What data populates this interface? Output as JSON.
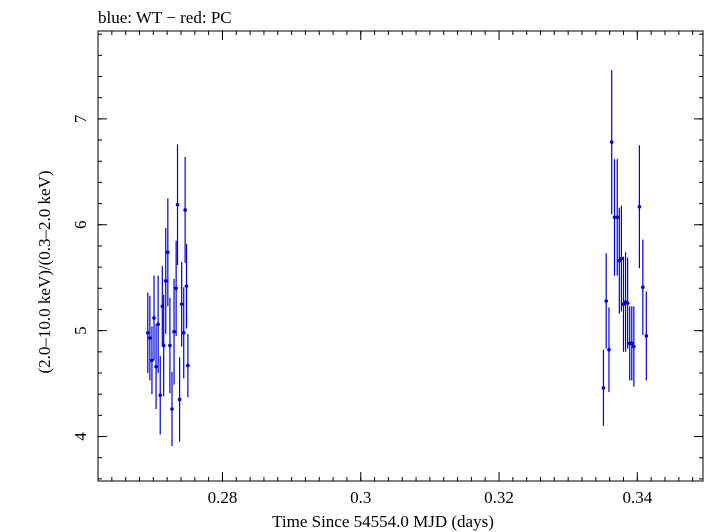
{
  "chart_data": {
    "type": "scatter",
    "title": "blue: WT − red: PC",
    "xlabel": "Time Since 54554.0 MJD (days)",
    "ylabel": "(2.0–10.0 keV)/(0.3–2.0 keV)",
    "xlim": [
      0.262,
      0.3495
    ],
    "ylim": [
      3.58,
      7.83
    ],
    "x_ticks": [
      {
        "value": 0.28,
        "label": "0.28"
      },
      {
        "value": 0.3,
        "label": "0.3"
      },
      {
        "value": 0.32,
        "label": "0.32"
      },
      {
        "value": 0.34,
        "label": "0.34"
      }
    ],
    "y_ticks": [
      {
        "value": 4,
        "label": "4"
      },
      {
        "value": 5,
        "label": "5"
      },
      {
        "value": 6,
        "label": "6"
      },
      {
        "value": 7,
        "label": "7"
      }
    ],
    "x_minor_step": 0.002,
    "y_minor_step": 0.2,
    "grid": false,
    "series": [
      {
        "color": "#0000e0",
        "points": [
          {
            "x": 0.2692,
            "y": 4.98,
            "err": 0.38
          },
          {
            "x": 0.2695,
            "y": 4.93,
            "err": 0.4
          },
          {
            "x": 0.2698,
            "y": 4.72,
            "err": 0.32
          },
          {
            "x": 0.2701,
            "y": 5.12,
            "err": 0.4
          },
          {
            "x": 0.2704,
            "y": 4.66,
            "err": 0.4
          },
          {
            "x": 0.2707,
            "y": 5.06,
            "err": 0.46
          },
          {
            "x": 0.271,
            "y": 4.39,
            "err": 0.37
          },
          {
            "x": 0.2713,
            "y": 5.23,
            "err": 0.38
          },
          {
            "x": 0.2715,
            "y": 4.86,
            "err": 0.48
          },
          {
            "x": 0.2718,
            "y": 5.47,
            "err": 0.5
          },
          {
            "x": 0.2721,
            "y": 5.74,
            "err": 0.51
          },
          {
            "x": 0.2724,
            "y": 4.86,
            "err": 0.45
          },
          {
            "x": 0.2727,
            "y": 4.26,
            "err": 0.35
          },
          {
            "x": 0.273,
            "y": 4.99,
            "err": 0.5
          },
          {
            "x": 0.2733,
            "y": 5.4,
            "err": 0.45
          },
          {
            "x": 0.2735,
            "y": 6.19,
            "err": 0.57
          },
          {
            "x": 0.2738,
            "y": 4.35,
            "err": 0.4
          },
          {
            "x": 0.2741,
            "y": 5.25,
            "err": 0.4
          },
          {
            "x": 0.2744,
            "y": 4.98,
            "err": 0.43
          },
          {
            "x": 0.2746,
            "y": 6.14,
            "err": 0.5
          },
          {
            "x": 0.2748,
            "y": 5.42,
            "err": 0.4
          },
          {
            "x": 0.275,
            "y": 4.67,
            "err": 0.3
          },
          {
            "x": 0.3351,
            "y": 4.46,
            "err": 0.36
          },
          {
            "x": 0.3355,
            "y": 5.28,
            "err": 0.45
          },
          {
            "x": 0.3359,
            "y": 4.82,
            "err": 0.4
          },
          {
            "x": 0.3363,
            "y": 6.78,
            "err": 0.68
          },
          {
            "x": 0.3367,
            "y": 6.07,
            "err": 0.55
          },
          {
            "x": 0.3371,
            "y": 6.07,
            "err": 0.55
          },
          {
            "x": 0.3374,
            "y": 5.66,
            "err": 0.5
          },
          {
            "x": 0.3377,
            "y": 5.68,
            "err": 0.5
          },
          {
            "x": 0.338,
            "y": 5.25,
            "err": 0.45
          },
          {
            "x": 0.3383,
            "y": 5.27,
            "err": 0.47
          },
          {
            "x": 0.3386,
            "y": 5.26,
            "err": 0.43
          },
          {
            "x": 0.3389,
            "y": 4.88,
            "err": 0.35
          },
          {
            "x": 0.3392,
            "y": 4.88,
            "err": 0.35
          },
          {
            "x": 0.3395,
            "y": 4.85,
            "err": 0.38
          },
          {
            "x": 0.3403,
            "y": 6.17,
            "err": 0.58
          },
          {
            "x": 0.3408,
            "y": 5.41,
            "err": 0.45
          },
          {
            "x": 0.3413,
            "y": 4.95,
            "err": 0.42
          }
        ]
      }
    ]
  }
}
